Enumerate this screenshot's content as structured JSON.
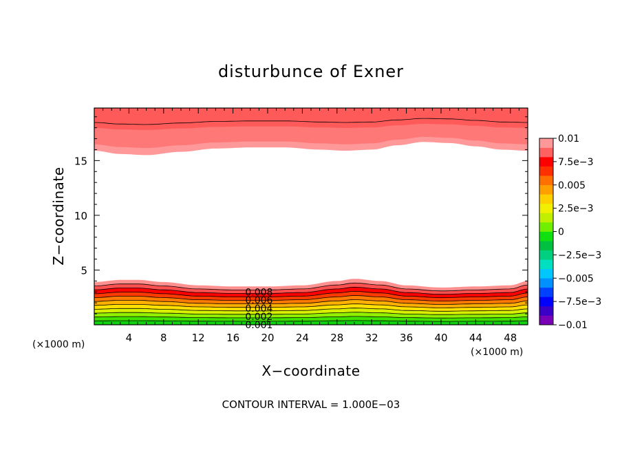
{
  "chart_data": {
    "type": "heatmap",
    "title": "disturbunce of Exner",
    "xlabel": "X−coordinate",
    "ylabel": "Z−coordinate",
    "x_unit_left": "(×1000 m)",
    "x_unit_right": "(×1000 m)",
    "xlim": [
      0,
      50
    ],
    "ylim": [
      0,
      19.8
    ],
    "x_ticks": [
      4,
      8,
      12,
      16,
      20,
      24,
      28,
      32,
      36,
      40,
      44,
      48
    ],
    "x_tick_labels": [
      "4",
      "8",
      "12",
      "16",
      "20",
      "24",
      "28",
      "32",
      "36",
      "40",
      "44",
      "48"
    ],
    "y_ticks": [
      5,
      10,
      15
    ],
    "y_tick_labels": [
      "5",
      "10",
      "15"
    ],
    "contour_interval_text": "CONTOUR INTERVAL = 1.000E−03",
    "colorbar": {
      "min": -0.01,
      "max": 0.01,
      "tick_values": [
        0.01,
        0.0075,
        0.005,
        0.0025,
        0,
        -0.0025,
        -0.005,
        -0.0075,
        -0.01
      ],
      "tick_labels": [
        "0.01",
        "7.5e−3",
        "0.005",
        "2.5e−3",
        "0",
        "−2.5e−3",
        "−0.005",
        "−7.5e−3",
        "−0.01"
      ],
      "colors": [
        "#7a00b8",
        "#3a00c8",
        "#0000ff",
        "#0040ff",
        "#0090ff",
        "#00c8ff",
        "#00e0c0",
        "#00d080",
        "#00c040",
        "#10e010",
        "#70f000",
        "#c0f000",
        "#f0f000",
        "#ffd000",
        "#ffa000",
        "#ff7000",
        "#ff3000",
        "#ff0000",
        "#ff6060",
        "#ff9898"
      ]
    },
    "lower_band": {
      "description_levels": [
        0.0,
        0.001,
        0.002,
        0.003,
        0.004,
        0.005,
        0.006,
        0.007,
        0.008,
        0.009
      ],
      "top_boundary_x": [
        0,
        3,
        5,
        8,
        12,
        16,
        20,
        24,
        28,
        30,
        33,
        36,
        40,
        44,
        48,
        50
      ],
      "top_boundary_z": [
        3.9,
        4.1,
        4.1,
        3.9,
        3.6,
        3.5,
        3.5,
        3.6,
        4.0,
        4.2,
        4.0,
        3.6,
        3.4,
        3.5,
        3.6,
        4.0
      ]
    },
    "upper_band": {
      "bottom_boundary_x": [
        0,
        3,
        6,
        10,
        14,
        18,
        22,
        26,
        29,
        32,
        35,
        38,
        41,
        44,
        47,
        50
      ],
      "bottom_boundary_z": [
        15.9,
        15.6,
        15.5,
        15.8,
        16.1,
        16.2,
        16.2,
        16.0,
        15.9,
        16.0,
        16.4,
        16.7,
        16.6,
        16.3,
        16.0,
        15.9
      ]
    },
    "contour_labels": [
      "0.008",
      "0.006",
      "0.004",
      "0.002",
      "0.001"
    ]
  }
}
